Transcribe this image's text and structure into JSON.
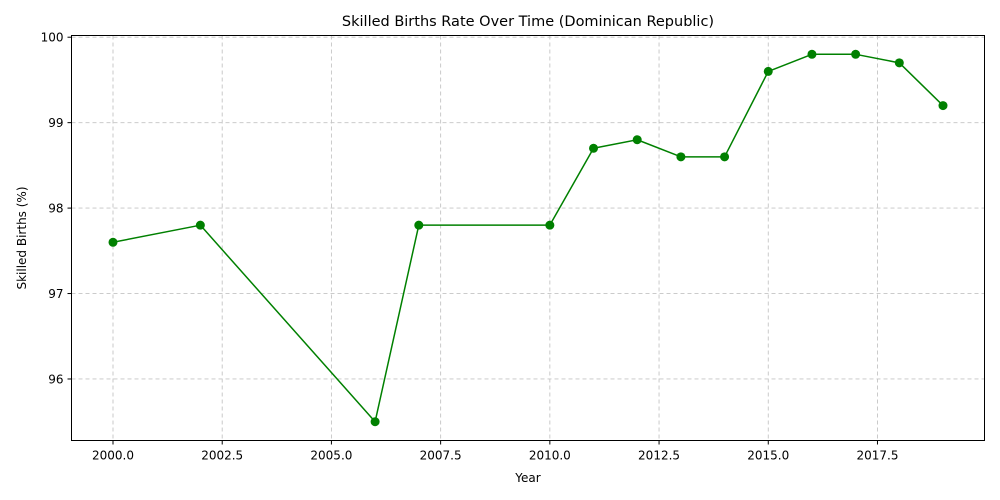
{
  "chart_data": {
    "type": "line",
    "title": "Skilled Births Rate Over Time (Dominican Republic)",
    "xlabel": "Year",
    "ylabel": "Skilled Births (%)",
    "xlim": [
      1999.05,
      2019.95
    ],
    "ylim": [
      95.28,
      100.02
    ],
    "x_ticks": [
      2000.0,
      2002.5,
      2005.0,
      2007.5,
      2010.0,
      2012.5,
      2015.0,
      2017.5
    ],
    "x_tick_labels": [
      "2000.0",
      "2002.5",
      "2005.0",
      "2007.5",
      "2010.0",
      "2012.5",
      "2015.0",
      "2017.5"
    ],
    "y_ticks": [
      96,
      97,
      98,
      99,
      100
    ],
    "y_tick_labels": [
      "96",
      "97",
      "98",
      "99",
      "100"
    ],
    "grid": true,
    "color": "#008000",
    "series": [
      {
        "x": [
          2000,
          2002,
          2006,
          2007,
          2010,
          2011,
          2012,
          2013,
          2014,
          2015,
          2016,
          2017,
          2018,
          2019
        ],
        "y": [
          97.6,
          97.8,
          95.5,
          97.8,
          97.8,
          98.7,
          98.8,
          98.6,
          98.6,
          99.6,
          99.8,
          99.8,
          99.7,
          99.2
        ]
      }
    ]
  }
}
